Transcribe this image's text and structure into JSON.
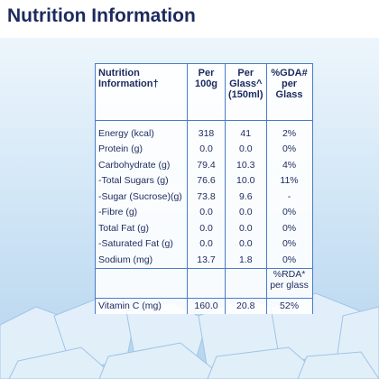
{
  "title": "Nutrition Information",
  "table": {
    "header": [
      [
        "Nutrition",
        "Information†"
      ],
      [
        "Per",
        "100g"
      ],
      [
        "Per",
        "Glass^",
        "(150ml)"
      ],
      [
        "%GDA#",
        "per",
        "Glass"
      ]
    ],
    "rows": [
      [
        "Energy (kcal)",
        "318",
        "41",
        "2%"
      ],
      [
        "Protein (g)",
        "0.0",
        "0.0",
        "0%"
      ],
      [
        "Carbohydrate (g)",
        "79.4",
        "10.3",
        "4%"
      ],
      [
        "-Total Sugars (g)",
        "76.6",
        "10.0",
        "11%"
      ],
      [
        "-Sugar (Sucrose)(g)",
        "73.8",
        "9.6",
        "-"
      ],
      [
        "-Fibre (g)",
        "0.0",
        "0.0",
        "0%"
      ],
      [
        "Total Fat (g)",
        "0.0",
        "0.0",
        "0%"
      ],
      [
        "-Saturated Fat (g)",
        "0.0",
        "0.0",
        "0%"
      ],
      [
        "Sodium (mg)",
        "13.7",
        "1.8",
        "0%"
      ]
    ],
    "rda_header": [
      "%RDA*",
      "per glass"
    ],
    "rda_rows": [
      [
        "Vitamin C (mg)",
        "160.0",
        "20.8",
        "52%"
      ]
    ]
  }
}
